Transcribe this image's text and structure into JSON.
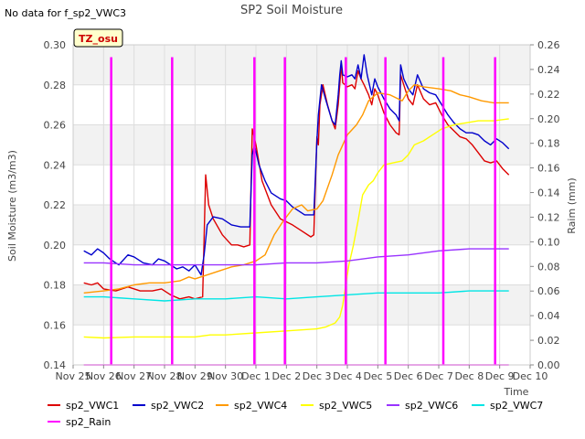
{
  "chart_data": {
    "type": "line",
    "title": "SP2 Soil Moisture",
    "top_left_note": "No data for f_sp2_VWC3",
    "badge": "TZ_osu",
    "xlabel": "Time",
    "ylabel_left": "Soil Moisture (m3/m3)",
    "ylabel_right": "Raim (mm)",
    "x_range": [
      0,
      15
    ],
    "x_ticks": [
      {
        "x": 0,
        "label": "Nov 25"
      },
      {
        "x": 1,
        "label": "Nov 26"
      },
      {
        "x": 2,
        "label": "Nov 27"
      },
      {
        "x": 3,
        "label": "Nov 28"
      },
      {
        "x": 4,
        "label": "Nov 29"
      },
      {
        "x": 5,
        "label": "Nov 30"
      },
      {
        "x": 6,
        "label": "Dec 1"
      },
      {
        "x": 7,
        "label": "Dec 2"
      },
      {
        "x": 8,
        "label": "Dec 3"
      },
      {
        "x": 9,
        "label": "Dec 4"
      },
      {
        "x": 10,
        "label": "Dec 5"
      },
      {
        "x": 11,
        "label": "Dec 6"
      },
      {
        "x": 12,
        "label": "Dec 7"
      },
      {
        "x": 13,
        "label": "Dec 8"
      },
      {
        "x": 14,
        "label": "Dec 9"
      },
      {
        "x": 15,
        "label": "Dec 10"
      }
    ],
    "y_left_range": [
      0.14,
      0.3
    ],
    "y_left_ticks": [
      "0.14",
      "0.16",
      "0.18",
      "0.20",
      "0.22",
      "0.24",
      "0.26",
      "0.28",
      "0.30"
    ],
    "y_right_range": [
      0.0,
      0.26
    ],
    "y_right_ticks": [
      "0.00",
      "0.02",
      "0.04",
      "0.06",
      "0.08",
      "0.10",
      "0.12",
      "0.14",
      "0.16",
      "0.18",
      "0.20",
      "0.22",
      "0.24",
      "0.26"
    ],
    "series": [
      {
        "name": "sp2_VWC1",
        "color": "#dd0000",
        "axis": "left",
        "points": [
          [
            0.35,
            0.181
          ],
          [
            0.6,
            0.18
          ],
          [
            0.8,
            0.181
          ],
          [
            1.0,
            0.178
          ],
          [
            1.4,
            0.177
          ],
          [
            1.8,
            0.179
          ],
          [
            2.2,
            0.177
          ],
          [
            2.6,
            0.177
          ],
          [
            2.9,
            0.178
          ],
          [
            3.2,
            0.175
          ],
          [
            3.5,
            0.173
          ],
          [
            3.8,
            0.174
          ],
          [
            4.0,
            0.173
          ],
          [
            4.25,
            0.174
          ],
          [
            4.35,
            0.235
          ],
          [
            4.45,
            0.22
          ],
          [
            4.6,
            0.213
          ],
          [
            4.9,
            0.205
          ],
          [
            5.2,
            0.2
          ],
          [
            5.4,
            0.2
          ],
          [
            5.6,
            0.199
          ],
          [
            5.8,
            0.2
          ],
          [
            5.88,
            0.258
          ],
          [
            6.0,
            0.25
          ],
          [
            6.2,
            0.232
          ],
          [
            6.5,
            0.22
          ],
          [
            6.8,
            0.213
          ],
          [
            7.2,
            0.21
          ],
          [
            7.5,
            0.207
          ],
          [
            7.8,
            0.204
          ],
          [
            7.9,
            0.205
          ],
          [
            8.0,
            0.254
          ],
          [
            8.05,
            0.25
          ],
          [
            8.1,
            0.27
          ],
          [
            8.2,
            0.28
          ],
          [
            8.35,
            0.27
          ],
          [
            8.5,
            0.262
          ],
          [
            8.6,
            0.258
          ],
          [
            8.7,
            0.27
          ],
          [
            8.75,
            0.28
          ],
          [
            8.8,
            0.29
          ],
          [
            8.85,
            0.281
          ],
          [
            9.0,
            0.279
          ],
          [
            9.15,
            0.28
          ],
          [
            9.25,
            0.278
          ],
          [
            9.35,
            0.287
          ],
          [
            9.45,
            0.283
          ],
          [
            9.55,
            0.28
          ],
          [
            9.7,
            0.275
          ],
          [
            9.8,
            0.27
          ],
          [
            9.9,
            0.278
          ],
          [
            10.0,
            0.275
          ],
          [
            10.2,
            0.266
          ],
          [
            10.4,
            0.26
          ],
          [
            10.6,
            0.256
          ],
          [
            10.7,
            0.255
          ],
          [
            10.75,
            0.285
          ],
          [
            10.85,
            0.28
          ],
          [
            11.0,
            0.273
          ],
          [
            11.15,
            0.27
          ],
          [
            11.3,
            0.28
          ],
          [
            11.5,
            0.273
          ],
          [
            11.7,
            0.27
          ],
          [
            11.9,
            0.271
          ],
          [
            12.1,
            0.265
          ],
          [
            12.3,
            0.26
          ],
          [
            12.5,
            0.257
          ],
          [
            12.7,
            0.254
          ],
          [
            12.9,
            0.253
          ],
          [
            13.1,
            0.25
          ],
          [
            13.3,
            0.246
          ],
          [
            13.5,
            0.242
          ],
          [
            13.7,
            0.241
          ],
          [
            13.9,
            0.242
          ],
          [
            14.1,
            0.238
          ],
          [
            14.3,
            0.235
          ]
        ]
      },
      {
        "name": "sp2_VWC2",
        "color": "#0000cc",
        "axis": "left",
        "points": [
          [
            0.35,
            0.197
          ],
          [
            0.6,
            0.195
          ],
          [
            0.8,
            0.198
          ],
          [
            1.0,
            0.196
          ],
          [
            1.2,
            0.193
          ],
          [
            1.5,
            0.19
          ],
          [
            1.8,
            0.195
          ],
          [
            2.0,
            0.194
          ],
          [
            2.3,
            0.191
          ],
          [
            2.6,
            0.19
          ],
          [
            2.8,
            0.193
          ],
          [
            3.0,
            0.192
          ],
          [
            3.2,
            0.19
          ],
          [
            3.4,
            0.188
          ],
          [
            3.6,
            0.189
          ],
          [
            3.8,
            0.187
          ],
          [
            4.0,
            0.19
          ],
          [
            4.2,
            0.185
          ],
          [
            4.3,
            0.195
          ],
          [
            4.4,
            0.21
          ],
          [
            4.6,
            0.214
          ],
          [
            4.9,
            0.213
          ],
          [
            5.2,
            0.21
          ],
          [
            5.5,
            0.209
          ],
          [
            5.8,
            0.209
          ],
          [
            5.88,
            0.245
          ],
          [
            5.95,
            0.25
          ],
          [
            6.1,
            0.24
          ],
          [
            6.3,
            0.232
          ],
          [
            6.5,
            0.226
          ],
          [
            6.8,
            0.223
          ],
          [
            7.0,
            0.222
          ],
          [
            7.2,
            0.219
          ],
          [
            7.4,
            0.217
          ],
          [
            7.6,
            0.215
          ],
          [
            7.8,
            0.215
          ],
          [
            7.9,
            0.215
          ],
          [
            8.0,
            0.252
          ],
          [
            8.05,
            0.265
          ],
          [
            8.15,
            0.28
          ],
          [
            8.3,
            0.272
          ],
          [
            8.5,
            0.262
          ],
          [
            8.6,
            0.26
          ],
          [
            8.7,
            0.275
          ],
          [
            8.75,
            0.285
          ],
          [
            8.8,
            0.292
          ],
          [
            8.85,
            0.285
          ],
          [
            9.0,
            0.284
          ],
          [
            9.15,
            0.285
          ],
          [
            9.25,
            0.283
          ],
          [
            9.35,
            0.29
          ],
          [
            9.45,
            0.283
          ],
          [
            9.55,
            0.295
          ],
          [
            9.65,
            0.285
          ],
          [
            9.8,
            0.275
          ],
          [
            9.9,
            0.283
          ],
          [
            10.0,
            0.279
          ],
          [
            10.2,
            0.273
          ],
          [
            10.4,
            0.268
          ],
          [
            10.6,
            0.265
          ],
          [
            10.7,
            0.262
          ],
          [
            10.75,
            0.29
          ],
          [
            10.85,
            0.283
          ],
          [
            11.0,
            0.278
          ],
          [
            11.15,
            0.275
          ],
          [
            11.3,
            0.285
          ],
          [
            11.5,
            0.278
          ],
          [
            11.7,
            0.276
          ],
          [
            11.9,
            0.275
          ],
          [
            12.1,
            0.27
          ],
          [
            12.3,
            0.265
          ],
          [
            12.5,
            0.261
          ],
          [
            12.7,
            0.258
          ],
          [
            12.9,
            0.256
          ],
          [
            13.1,
            0.256
          ],
          [
            13.3,
            0.255
          ],
          [
            13.5,
            0.252
          ],
          [
            13.7,
            0.25
          ],
          [
            13.9,
            0.253
          ],
          [
            14.1,
            0.251
          ],
          [
            14.3,
            0.248
          ]
        ]
      },
      {
        "name": "sp2_VWC4",
        "color": "#ff9900",
        "axis": "left",
        "points": [
          [
            0.35,
            0.176
          ],
          [
            1.0,
            0.177
          ],
          [
            1.5,
            0.178
          ],
          [
            2.0,
            0.18
          ],
          [
            2.5,
            0.181
          ],
          [
            3.0,
            0.181
          ],
          [
            3.5,
            0.182
          ],
          [
            3.8,
            0.184
          ],
          [
            4.0,
            0.183
          ],
          [
            4.4,
            0.185
          ],
          [
            4.8,
            0.187
          ],
          [
            5.2,
            0.189
          ],
          [
            5.6,
            0.19
          ],
          [
            6.0,
            0.192
          ],
          [
            6.3,
            0.195
          ],
          [
            6.6,
            0.205
          ],
          [
            6.9,
            0.212
          ],
          [
            7.2,
            0.218
          ],
          [
            7.5,
            0.22
          ],
          [
            7.7,
            0.217
          ],
          [
            8.0,
            0.218
          ],
          [
            8.2,
            0.222
          ],
          [
            8.5,
            0.235
          ],
          [
            8.7,
            0.245
          ],
          [
            9.0,
            0.255
          ],
          [
            9.3,
            0.26
          ],
          [
            9.5,
            0.265
          ],
          [
            9.7,
            0.272
          ],
          [
            10.0,
            0.276
          ],
          [
            10.4,
            0.275
          ],
          [
            10.8,
            0.272
          ],
          [
            11.0,
            0.277
          ],
          [
            11.2,
            0.28
          ],
          [
            11.5,
            0.279
          ],
          [
            12.0,
            0.278
          ],
          [
            12.4,
            0.277
          ],
          [
            12.7,
            0.275
          ],
          [
            13.0,
            0.274
          ],
          [
            13.4,
            0.272
          ],
          [
            13.8,
            0.271
          ],
          [
            14.3,
            0.271
          ]
        ]
      },
      {
        "name": "sp2_VWC5",
        "color": "#ffff00",
        "axis": "left",
        "points": [
          [
            0.35,
            0.154
          ],
          [
            1.0,
            0.1535
          ],
          [
            2.0,
            0.154
          ],
          [
            3.0,
            0.154
          ],
          [
            4.0,
            0.154
          ],
          [
            4.5,
            0.155
          ],
          [
            5.0,
            0.155
          ],
          [
            6.0,
            0.156
          ],
          [
            7.0,
            0.157
          ],
          [
            8.0,
            0.158
          ],
          [
            8.3,
            0.159
          ],
          [
            8.6,
            0.161
          ],
          [
            8.75,
            0.164
          ],
          [
            8.85,
            0.17
          ],
          [
            8.95,
            0.18
          ],
          [
            9.05,
            0.19
          ],
          [
            9.2,
            0.2
          ],
          [
            9.35,
            0.212
          ],
          [
            9.5,
            0.225
          ],
          [
            9.7,
            0.23
          ],
          [
            9.85,
            0.232
          ],
          [
            10.0,
            0.236
          ],
          [
            10.2,
            0.24
          ],
          [
            10.5,
            0.241
          ],
          [
            10.8,
            0.242
          ],
          [
            11.0,
            0.245
          ],
          [
            11.2,
            0.25
          ],
          [
            11.5,
            0.252
          ],
          [
            11.8,
            0.255
          ],
          [
            12.1,
            0.258
          ],
          [
            12.5,
            0.26
          ],
          [
            12.9,
            0.261
          ],
          [
            13.3,
            0.262
          ],
          [
            13.8,
            0.262
          ],
          [
            14.3,
            0.263
          ]
        ]
      },
      {
        "name": "sp2_VWC6",
        "color": "#9933ff",
        "axis": "left",
        "points": [
          [
            0.35,
            0.191
          ],
          [
            1.0,
            0.191
          ],
          [
            2.0,
            0.19
          ],
          [
            3.0,
            0.19
          ],
          [
            4.0,
            0.19
          ],
          [
            5.0,
            0.19
          ],
          [
            6.0,
            0.19
          ],
          [
            7.0,
            0.191
          ],
          [
            8.0,
            0.191
          ],
          [
            9.0,
            0.192
          ],
          [
            10.0,
            0.194
          ],
          [
            11.0,
            0.195
          ],
          [
            12.0,
            0.197
          ],
          [
            13.0,
            0.198
          ],
          [
            14.3,
            0.198
          ]
        ]
      },
      {
        "name": "sp2_VWC7",
        "color": "#00e5e5",
        "axis": "left",
        "points": [
          [
            0.35,
            0.174
          ],
          [
            1.0,
            0.174
          ],
          [
            2.0,
            0.173
          ],
          [
            3.0,
            0.172
          ],
          [
            4.0,
            0.173
          ],
          [
            5.0,
            0.173
          ],
          [
            6.0,
            0.174
          ],
          [
            7.0,
            0.173
          ],
          [
            8.0,
            0.174
          ],
          [
            9.0,
            0.175
          ],
          [
            10.0,
            0.176
          ],
          [
            11.0,
            0.176
          ],
          [
            12.0,
            0.176
          ],
          [
            13.0,
            0.177
          ],
          [
            14.3,
            0.177
          ]
        ]
      },
      {
        "name": "sp2_Rain",
        "color": "#ff00ff",
        "axis": "right",
        "spikes": [
          [
            1.25,
            0.25
          ],
          [
            3.25,
            0.25
          ],
          [
            5.95,
            0.25
          ],
          [
            6.95,
            0.25
          ],
          [
            8.95,
            0.25
          ],
          [
            10.25,
            0.25
          ],
          [
            12.15,
            0.25
          ],
          [
            13.85,
            0.25
          ]
        ],
        "baseline": 0.0,
        "baseline_from": 0.35,
        "baseline_to": 14.3
      }
    ],
    "legend": [
      {
        "name": "sp2_VWC1",
        "color": "#dd0000"
      },
      {
        "name": "sp2_VWC2",
        "color": "#0000cc"
      },
      {
        "name": "sp2_VWC4",
        "color": "#ff9900"
      },
      {
        "name": "sp2_VWC5",
        "color": "#ffff00"
      },
      {
        "name": "sp2_VWC6",
        "color": "#9933ff"
      },
      {
        "name": "sp2_VWC7",
        "color": "#00e5e5"
      },
      {
        "name": "sp2_Rain",
        "color": "#ff00ff"
      }
    ],
    "legend_position": "bottom",
    "grid": true
  }
}
